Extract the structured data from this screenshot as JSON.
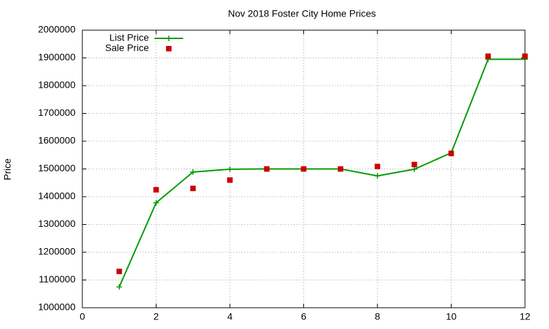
{
  "chart_data": {
    "type": "line",
    "title": "Nov 2018 Foster City Home Prices",
    "y_label": "Price",
    "x": [
      1,
      2,
      3,
      4,
      5,
      6,
      7,
      8,
      9,
      10,
      11,
      12
    ],
    "series": [
      {
        "name": "List Price",
        "color": "#009900",
        "line": true,
        "marker": "plus",
        "values": [
          1075000,
          1378000,
          1489000,
          1499000,
          1500000,
          1500000,
          1500000,
          1475000,
          1499000,
          1558000,
          1895000,
          1895000
        ]
      },
      {
        "name": "Sale Price",
        "color": "#cc0000",
        "line": false,
        "marker": "square",
        "values": [
          1131000,
          1425000,
          1430000,
          1460000,
          1500000,
          1500000,
          1500000,
          1509000,
          1516000,
          1556000,
          1906000,
          1906000
        ]
      }
    ],
    "xlim": [
      0,
      12
    ],
    "xticks": [
      0,
      2,
      4,
      6,
      8,
      10,
      12
    ],
    "ylim": [
      1000000,
      2000000
    ],
    "yticks": [
      1000000,
      1100000,
      1200000,
      1300000,
      1400000,
      1500000,
      1600000,
      1700000,
      1800000,
      1900000,
      2000000
    ],
    "grid": true,
    "legend": "top-left"
  }
}
